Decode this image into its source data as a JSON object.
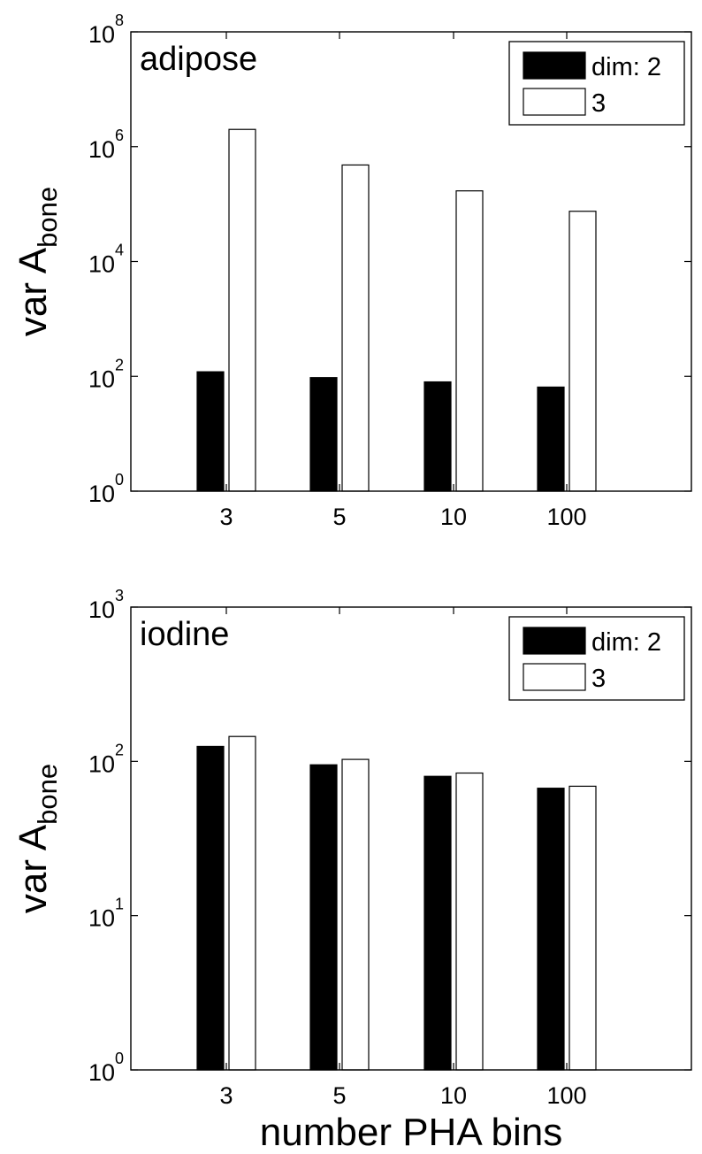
{
  "chart_data": [
    {
      "type": "bar",
      "annotation": "adipose",
      "ylabel_main": "var A",
      "ylabel_sub": "bone",
      "xlabel": "",
      "yscale": "log",
      "ylim": [
        1,
        100000000
      ],
      "yticks": [
        {
          "base": "10",
          "exp": "0"
        },
        {
          "base": "10",
          "exp": "2"
        },
        {
          "base": "10",
          "exp": "4"
        },
        {
          "base": "10",
          "exp": "6"
        },
        {
          "base": "10",
          "exp": "8"
        }
      ],
      "categories": [
        "3",
        "5",
        "10",
        "100"
      ],
      "series": [
        {
          "name": "dim: 2",
          "color": "#000000",
          "values": [
            120,
            95,
            80,
            65
          ]
        },
        {
          "name": "3",
          "color": "#ffffff",
          "values": [
            2000000,
            480000,
            170000,
            75000
          ]
        }
      ],
      "legend": "top-right",
      "grid": false
    },
    {
      "type": "bar",
      "annotation": "iodine",
      "ylabel_main": "var A",
      "ylabel_sub": "bone",
      "xlabel": "number PHA bins",
      "yscale": "log",
      "ylim": [
        1,
        1000
      ],
      "yticks": [
        {
          "base": "10",
          "exp": "0"
        },
        {
          "base": "10",
          "exp": "1"
        },
        {
          "base": "10",
          "exp": "2"
        },
        {
          "base": "10",
          "exp": "3"
        }
      ],
      "categories": [
        "3",
        "5",
        "10",
        "100"
      ],
      "series": [
        {
          "name": "dim: 2",
          "color": "#000000",
          "values": [
            125,
            95,
            80,
            67
          ]
        },
        {
          "name": "3",
          "color": "#ffffff",
          "values": [
            145,
            103,
            84,
            69
          ]
        }
      ],
      "legend": "top-right",
      "grid": false
    }
  ]
}
